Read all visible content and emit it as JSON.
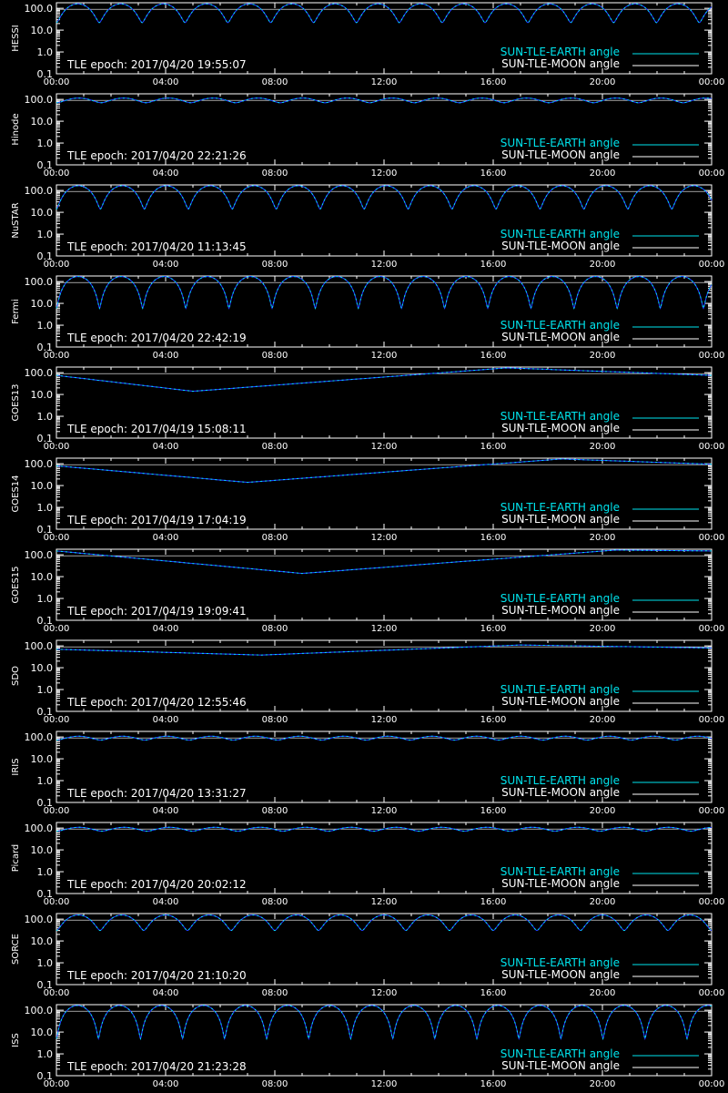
{
  "colors": {
    "background": "#000000",
    "axes": "#ffffff",
    "earth": "#00e5ee",
    "moon": "#ffffff",
    "dip": "#1f3dff"
  },
  "x_tick_labels": [
    "00:00",
    "04:00",
    "08:00",
    "12:00",
    "16:00",
    "20:00",
    "00:00"
  ],
  "y_tick_labels": [
    "100.0",
    "10.0",
    "1.0",
    "0.1"
  ],
  "legend": {
    "earth_label": "SUN-TLE-EARTH angle",
    "moon_label": "SUN-TLE-MOON angle"
  },
  "chart_data": [
    {
      "type": "line",
      "ylabel": "HESSI",
      "epoch_text": "TLE epoch: 2017/04/20 19:55:07",
      "yscale": "log",
      "ylim": [
        0.1,
        180
      ],
      "xlim": [
        0,
        24
      ],
      "orbit_hours": 1.57,
      "min_deg": 22,
      "max_deg": 160
    },
    {
      "type": "line",
      "ylabel": "Hinode",
      "epoch_text": "TLE epoch: 2017/04/20 22:21:26",
      "yscale": "log",
      "ylim": [
        0.1,
        180
      ],
      "xlim": [
        0,
        24
      ],
      "orbit_hours": 1.64,
      "min_deg": 70,
      "max_deg": 115
    },
    {
      "type": "line",
      "ylabel": "NuSTAR",
      "epoch_text": "TLE epoch: 2017/04/20 11:13:45",
      "yscale": "log",
      "ylim": [
        0.1,
        180
      ],
      "xlim": [
        0,
        24
      ],
      "orbit_hours": 1.61,
      "min_deg": 14,
      "max_deg": 165
    },
    {
      "type": "line",
      "ylabel": "Fermi",
      "epoch_text": "TLE epoch: 2017/04/20 22:42:19",
      "yscale": "log",
      "ylim": [
        0.1,
        180
      ],
      "xlim": [
        0,
        24
      ],
      "orbit_hours": 1.58,
      "min_deg": 6,
      "max_deg": 170
    },
    {
      "type": "line",
      "ylabel": "GOES13",
      "epoch_text": "TLE epoch: 2017/04/19 15:08:11",
      "yscale": "log",
      "ylim": [
        0.1,
        180
      ],
      "xlim": [
        0,
        24
      ],
      "points": [
        [
          0,
          75
        ],
        [
          5,
          14
        ],
        [
          16.5,
          165
        ],
        [
          24,
          75
        ]
      ]
    },
    {
      "type": "line",
      "ylabel": "GOES14",
      "epoch_text": "TLE epoch: 2017/04/19 17:04:19",
      "yscale": "log",
      "ylim": [
        0.1,
        180
      ],
      "xlim": [
        0,
        24
      ],
      "points": [
        [
          0,
          80
        ],
        [
          7,
          14
        ],
        [
          18.5,
          165
        ],
        [
          24,
          95
        ]
      ]
    },
    {
      "type": "line",
      "ylabel": "GOES15",
      "epoch_text": "TLE epoch: 2017/04/19 19:09:41",
      "yscale": "log",
      "ylim": [
        0.1,
        180
      ],
      "xlim": [
        0,
        24
      ],
      "points": [
        [
          0,
          150
        ],
        [
          9,
          14
        ],
        [
          20.5,
          165
        ],
        [
          24,
          150
        ]
      ]
    },
    {
      "type": "line",
      "ylabel": "SDO",
      "epoch_text": "TLE epoch: 2017/04/20 12:55:46",
      "yscale": "log",
      "ylim": [
        0.1,
        180
      ],
      "xlim": [
        0,
        24
      ],
      "points": [
        [
          0,
          70
        ],
        [
          7.5,
          38
        ],
        [
          17,
          110
        ],
        [
          24,
          80
        ]
      ]
    },
    {
      "type": "line",
      "ylabel": "IRIS",
      "epoch_text": "TLE epoch: 2017/04/20 13:31:27",
      "yscale": "log",
      "ylim": [
        0.1,
        180
      ],
      "xlim": [
        0,
        24
      ],
      "orbit_hours": 1.62,
      "min_deg": 72,
      "max_deg": 108
    },
    {
      "type": "line",
      "ylabel": "Picard",
      "epoch_text": "TLE epoch: 2017/04/20 20:02:12",
      "yscale": "log",
      "ylim": [
        0.1,
        180
      ],
      "xlim": [
        0,
        24
      ],
      "orbit_hours": 1.66,
      "min_deg": 72,
      "max_deg": 108
    },
    {
      "type": "line",
      "ylabel": "SORCE",
      "epoch_text": "TLE epoch: 2017/04/20 21:10:20",
      "yscale": "log",
      "ylim": [
        0.1,
        180
      ],
      "xlim": [
        0,
        24
      ],
      "orbit_hours": 1.6,
      "min_deg": 30,
      "max_deg": 155
    },
    {
      "type": "line",
      "ylabel": "ISS",
      "epoch_text": "TLE epoch: 2017/04/20 21:23:28",
      "yscale": "log",
      "ylim": [
        0.1,
        180
      ],
      "xlim": [
        0,
        24
      ],
      "orbit_hours": 1.54,
      "min_deg": 5,
      "max_deg": 165
    }
  ]
}
